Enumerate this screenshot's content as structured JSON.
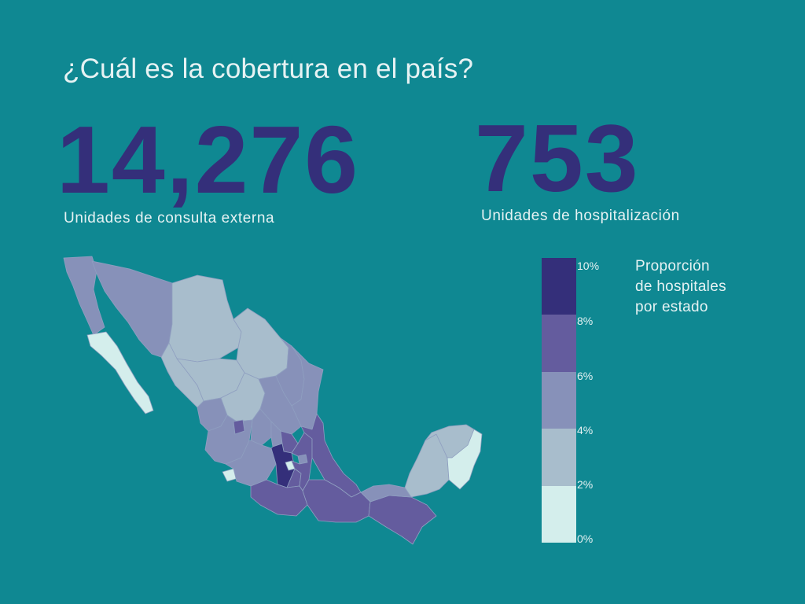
{
  "question": "¿Cuál es la cobertura en el país?",
  "stats": [
    {
      "value": "14,276",
      "label": "Unidades de consulta externa"
    },
    {
      "value": "753",
      "label": "Unidades de hospitalización"
    }
  ],
  "colors": {
    "background": "#0f8892",
    "number": "#342f7a",
    "text": "#e6f2f3",
    "scale": [
      "#d4eeec",
      "#a8bdcc",
      "#8791b9",
      "#645c9e",
      "#342f7a"
    ]
  },
  "legend": {
    "title_lines": [
      "Proporción",
      "de hospitales",
      "por estado"
    ],
    "ticks": [
      "10%",
      "8%",
      "6%",
      "4%",
      "2%",
      "0%"
    ]
  },
  "map": {
    "country": "México",
    "bins": [
      "0-2%",
      "2-4%",
      "4-6%",
      "6-8%",
      "8-10%"
    ],
    "regions": [
      {
        "name": "Baja California",
        "bin": 2
      },
      {
        "name": "Baja California Sur",
        "bin": 0
      },
      {
        "name": "Sonora",
        "bin": 2
      },
      {
        "name": "Chihuahua",
        "bin": 1
      },
      {
        "name": "Coahuila",
        "bin": 1
      },
      {
        "name": "Nuevo León",
        "bin": 2
      },
      {
        "name": "Tamaulipas",
        "bin": 2
      },
      {
        "name": "Sinaloa",
        "bin": 1
      },
      {
        "name": "Durango",
        "bin": 1
      },
      {
        "name": "Zacatecas",
        "bin": 1
      },
      {
        "name": "San Luis Potosí",
        "bin": 2
      },
      {
        "name": "Nayarit",
        "bin": 2
      },
      {
        "name": "Jalisco",
        "bin": 2
      },
      {
        "name": "Aguascalientes",
        "bin": 3
      },
      {
        "name": "Guanajuato",
        "bin": 2
      },
      {
        "name": "Querétaro",
        "bin": 2
      },
      {
        "name": "Hidalgo",
        "bin": 3
      },
      {
        "name": "Colima",
        "bin": 0
      },
      {
        "name": "Michoacán",
        "bin": 2
      },
      {
        "name": "Estado de México",
        "bin": 4
      },
      {
        "name": "Ciudad de México",
        "bin": 0
      },
      {
        "name": "Morelos",
        "bin": 3
      },
      {
        "name": "Tlaxcala",
        "bin": 2
      },
      {
        "name": "Puebla",
        "bin": 3
      },
      {
        "name": "Veracruz",
        "bin": 3
      },
      {
        "name": "Guerrero",
        "bin": 3
      },
      {
        "name": "Oaxaca",
        "bin": 3
      },
      {
        "name": "Chiapas",
        "bin": 3
      },
      {
        "name": "Tabasco",
        "bin": 2
      },
      {
        "name": "Campeche",
        "bin": 1
      },
      {
        "name": "Yucatán",
        "bin": 1
      },
      {
        "name": "Quintana Roo",
        "bin": 0
      }
    ]
  }
}
